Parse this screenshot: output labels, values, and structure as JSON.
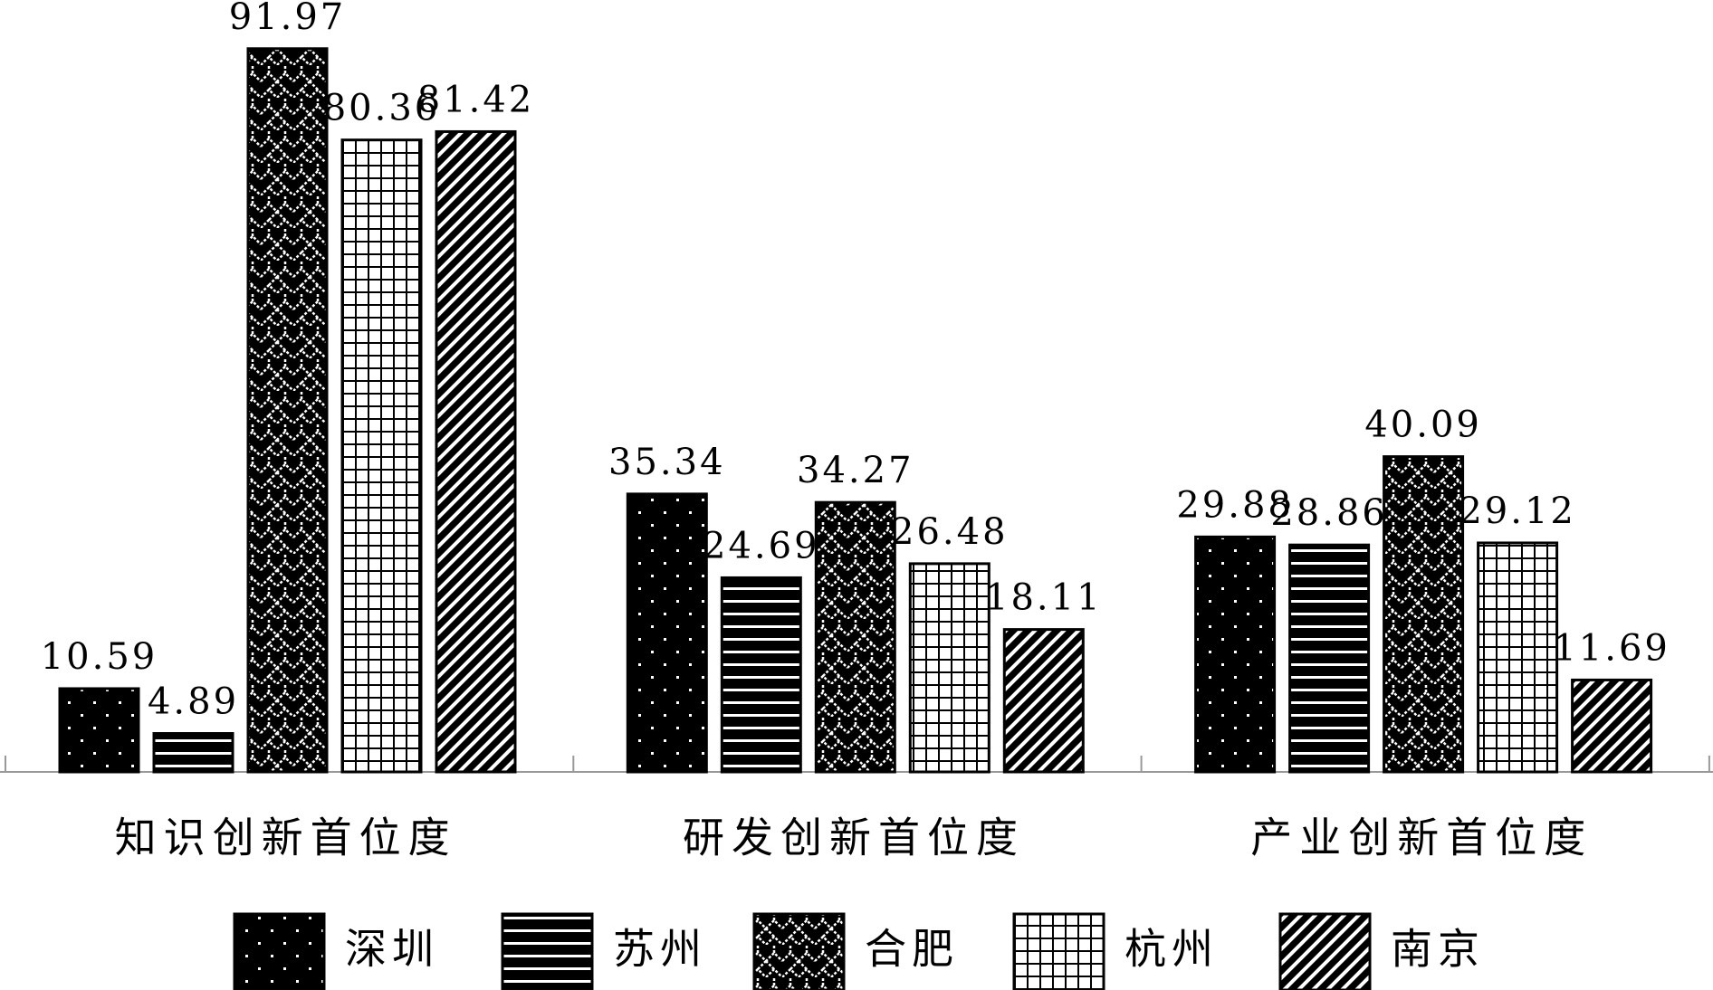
{
  "chart_data": {
    "type": "bar",
    "categories": [
      "知识创新首位度",
      "研发创新首位度",
      "产业创新首位度"
    ],
    "series": [
      {
        "name": "深圳",
        "color": "#000000",
        "pattern": "dots",
        "values": [
          10.59,
          35.34,
          29.88
        ]
      },
      {
        "name": "苏州",
        "color": "#000000",
        "pattern": "hlines",
        "values": [
          4.89,
          24.69,
          28.86
        ]
      },
      {
        "name": "合肥",
        "color": "#000000",
        "pattern": "lattice",
        "values": [
          91.97,
          34.27,
          40.09
        ]
      },
      {
        "name": "杭州",
        "color": "#000000",
        "pattern": "grid",
        "values": [
          80.36,
          26.48,
          29.12
        ]
      },
      {
        "name": "南京",
        "color": "#000000",
        "pattern": "diagonal",
        "values": [
          81.42,
          18.11,
          11.69
        ]
      }
    ],
    "legend": "bottom"
  }
}
